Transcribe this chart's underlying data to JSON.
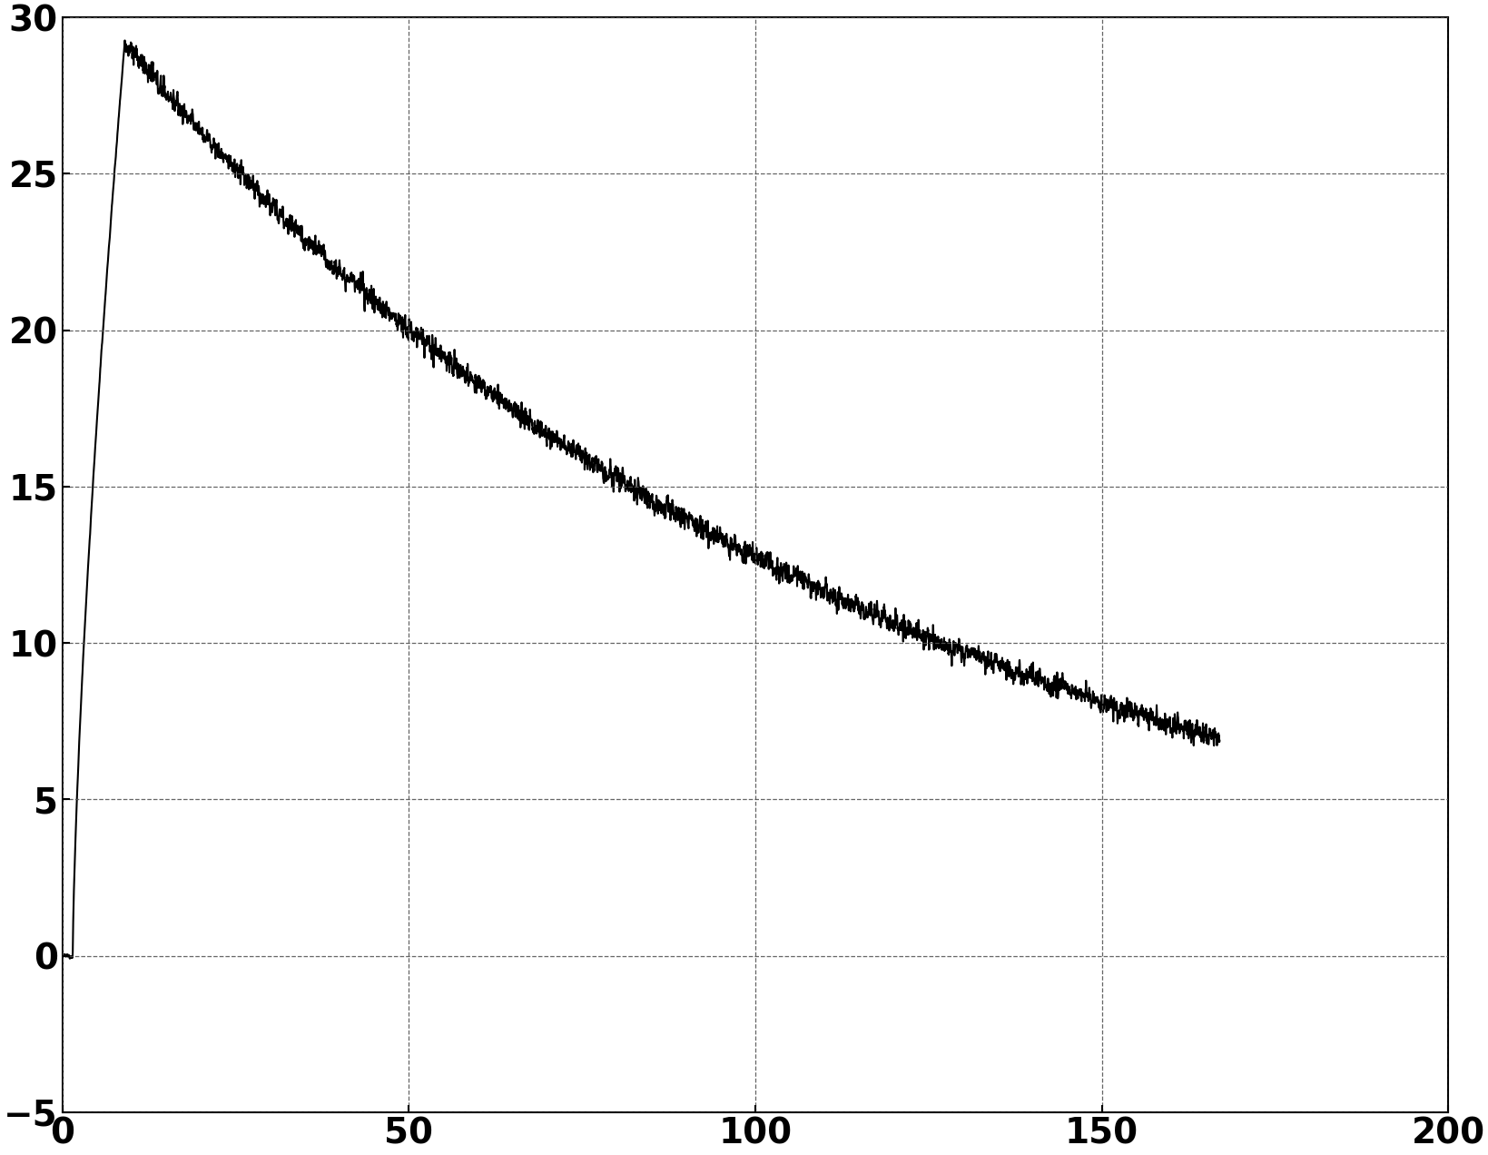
{
  "xlim": [
    0,
    200
  ],
  "ylim": [
    -5,
    30
  ],
  "xticks": [
    0,
    50,
    100,
    150,
    200
  ],
  "yticks": [
    -5,
    0,
    5,
    10,
    15,
    20,
    25,
    30
  ],
  "grid_color": "#555555",
  "line_color": "#000000",
  "background_color": "#ffffff",
  "line_width": 1.5,
  "noise_amplitude": 0.3,
  "peak_x": 9.0,
  "peak_y": 29.2,
  "end_x": 167.0,
  "end_y": 7.0,
  "rise_start_x": 1.5,
  "n_points": 5000,
  "tick_fontsize": 28,
  "grid_linestyle": "--",
  "grid_linewidth": 0.9,
  "grid_alpha": 0.9
}
